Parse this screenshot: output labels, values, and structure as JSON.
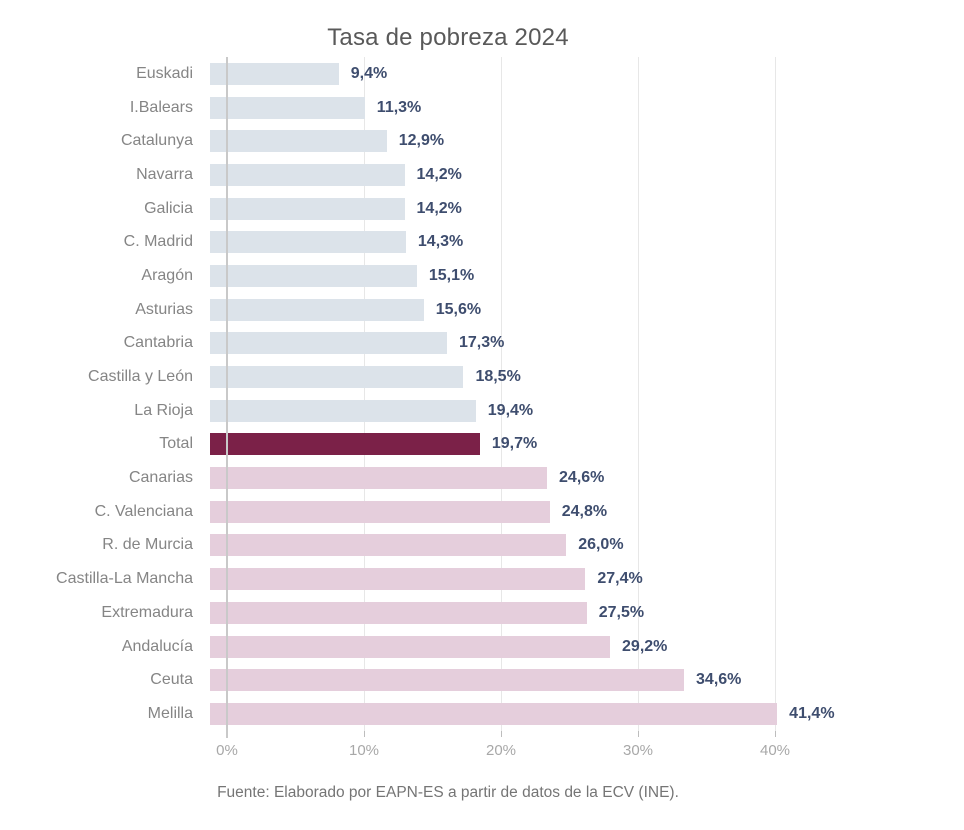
{
  "title": "Tasa de pobreza 2024",
  "source_note": "Fuente: Elaborado por EAPN-ES a partir de datos de la ECV (INE).",
  "colors": {
    "bar_below_total": "#DCE3EA",
    "bar_above_total": "#E5CEDC",
    "bar_total": "#7B2148",
    "value_label": "#3E4D6E",
    "category_label": "#858585",
    "axis_tick_label": "#A8A8A8",
    "title_text": "#595959",
    "source_text": "#757575",
    "gridline": "#E7E7E7",
    "axis_line": "#C9C9C9"
  },
  "chart_data": {
    "type": "bar",
    "orientation": "horizontal",
    "title": "Tasa de pobreza 2024",
    "value_unit": "%",
    "xlim": [
      0,
      45
    ],
    "grid": "vertical",
    "legend": "none",
    "highlight_category": "Total",
    "x_ticks": [
      {
        "label": "0%",
        "value": 0
      },
      {
        "label": "10%",
        "value": 10
      },
      {
        "label": "20%",
        "value": 20
      },
      {
        "label": "30%",
        "value": 30
      },
      {
        "label": "40%",
        "value": 40
      }
    ],
    "rows": [
      {
        "category": "Euskadi",
        "value": 9.4,
        "display": "9,4%",
        "group": "below_total"
      },
      {
        "category": "I.Balears",
        "value": 11.3,
        "display": "11,3%",
        "group": "below_total"
      },
      {
        "category": "Catalunya",
        "value": 12.9,
        "display": "12,9%",
        "group": "below_total"
      },
      {
        "category": "Navarra",
        "value": 14.2,
        "display": "14,2%",
        "group": "below_total"
      },
      {
        "category": "Galicia",
        "value": 14.2,
        "display": "14,2%",
        "group": "below_total"
      },
      {
        "category": "C. Madrid",
        "value": 14.3,
        "display": "14,3%",
        "group": "below_total"
      },
      {
        "category": "Aragón",
        "value": 15.1,
        "display": "15,1%",
        "group": "below_total"
      },
      {
        "category": "Asturias",
        "value": 15.6,
        "display": "15,6%",
        "group": "below_total"
      },
      {
        "category": "Cantabria",
        "value": 17.3,
        "display": "17,3%",
        "group": "below_total"
      },
      {
        "category": "Castilla y León",
        "value": 18.5,
        "display": "18,5%",
        "group": "below_total"
      },
      {
        "category": "La Rioja",
        "value": 19.4,
        "display": "19,4%",
        "group": "below_total"
      },
      {
        "category": "Total",
        "value": 19.7,
        "display": "19,7%",
        "group": "total"
      },
      {
        "category": "Canarias",
        "value": 24.6,
        "display": "24,6%",
        "group": "above_total"
      },
      {
        "category": "C. Valenciana",
        "value": 24.8,
        "display": "24,8%",
        "group": "above_total"
      },
      {
        "category": "R. de Murcia",
        "value": 26.0,
        "display": "26,0%",
        "group": "above_total"
      },
      {
        "category": "Castilla-La Mancha",
        "value": 27.4,
        "display": "27,4%",
        "group": "above_total"
      },
      {
        "category": "Extremadura",
        "value": 27.5,
        "display": "27,5%",
        "group": "above_total"
      },
      {
        "category": "Andalucía",
        "value": 29.2,
        "display": "29,2%",
        "group": "above_total"
      },
      {
        "category": "Ceuta",
        "value": 34.6,
        "display": "34,6%",
        "group": "above_total"
      },
      {
        "category": "Melilla",
        "value": 41.4,
        "display": "41,4%",
        "group": "above_total"
      }
    ]
  }
}
